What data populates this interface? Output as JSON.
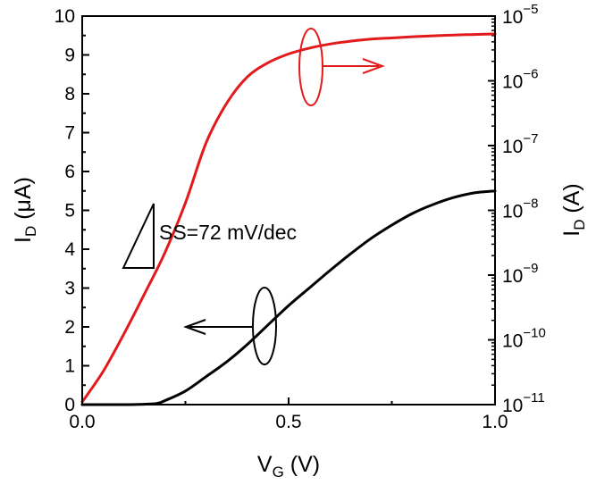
{
  "chart_data": {
    "type": "line",
    "xlabel": {
      "main": "V",
      "sub": "G",
      "unit": " (V)"
    },
    "ylabel_left": {
      "main": "I",
      "sub": "D",
      "unit": " (μA)"
    },
    "ylabel_right": {
      "main": "I",
      "sub": "D",
      "unit": " (A)"
    },
    "xlim": [
      0,
      1
    ],
    "ylim_left": [
      0,
      10
    ],
    "ylim_right": [
      1e-11,
      1e-05
    ],
    "right_scale": "log",
    "x_ticks": [
      "0.0",
      "0.5",
      "1.0"
    ],
    "y_left_ticks": [
      "0",
      "1",
      "2",
      "3",
      "4",
      "5",
      "6",
      "7",
      "8",
      "9",
      "10"
    ],
    "y_right_ticks": [
      {
        "base": "10",
        "exp": "−11"
      },
      {
        "base": "10",
        "exp": "−10"
      },
      {
        "base": "10",
        "exp": "−9"
      },
      {
        "base": "10",
        "exp": "−8"
      },
      {
        "base": "10",
        "exp": "−7"
      },
      {
        "base": "10",
        "exp": "−6"
      },
      {
        "base": "10",
        "exp": "−5"
      }
    ],
    "annotation": "SS=72 mV/dec",
    "series": [
      {
        "axis": "left",
        "color": "#000000",
        "x": [
          0.0,
          0.1,
          0.15,
          0.18,
          0.2,
          0.25,
          0.3,
          0.35,
          0.4,
          0.45,
          0.5,
          0.55,
          0.6,
          0.65,
          0.7,
          0.75,
          0.8,
          0.85,
          0.9,
          0.95,
          1.0
        ],
        "y": [
          0.0,
          0.0,
          0.01,
          0.03,
          0.1,
          0.35,
          0.72,
          1.1,
          1.55,
          2.05,
          2.55,
          3.0,
          3.45,
          3.88,
          4.28,
          4.62,
          4.92,
          5.15,
          5.33,
          5.45,
          5.5
        ]
      },
      {
        "axis": "right",
        "color": "#e31a1c",
        "x": [
          0.0,
          0.05,
          0.1,
          0.15,
          0.2,
          0.25,
          0.3,
          0.35,
          0.4,
          0.45,
          0.5,
          0.55,
          0.6,
          0.65,
          0.7,
          0.75,
          0.8,
          0.85,
          0.9,
          0.95,
          1.0
        ],
        "y": [
          1.1e-11,
          3.2e-11,
          1.2e-10,
          5e-10,
          2.2e-09,
          1.3e-08,
          1.1e-07,
          4.5e-07,
          1.15e-06,
          1.9e-06,
          2.6e-06,
          3.2e-06,
          3.7e-06,
          4.1e-06,
          4.4e-06,
          4.6e-06,
          4.8e-06,
          4.95e-06,
          5.1e-06,
          5.2e-06,
          5.3e-06
        ]
      }
    ]
  }
}
